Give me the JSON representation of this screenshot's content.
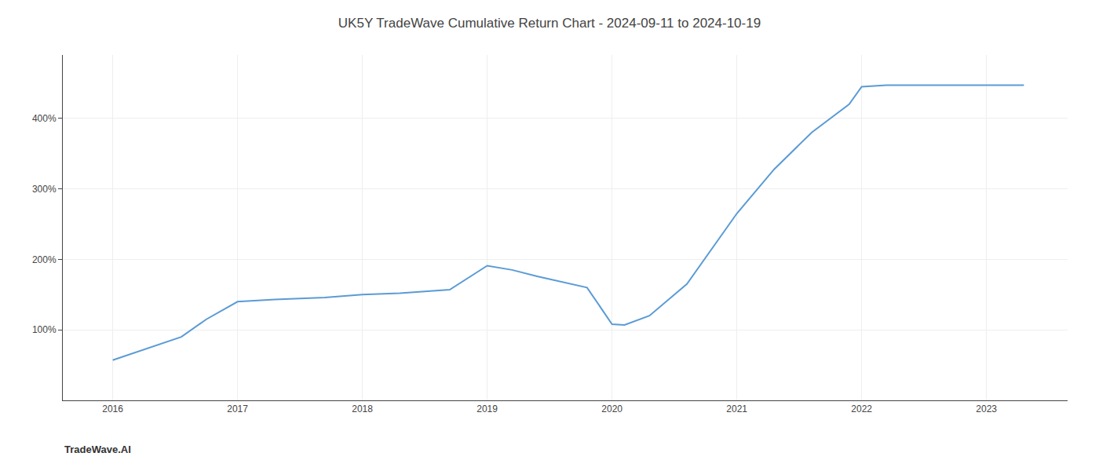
{
  "chart_data": {
    "type": "line",
    "title": "UK5Y TradeWave Cumulative Return Chart - 2024-09-11 to 2024-10-19",
    "annotations": [
      "TradeWave.AI"
    ],
    "x": [
      2016,
      2016.55,
      2016.75,
      2017,
      2017.3,
      2017.7,
      2018,
      2018.3,
      2018.7,
      2019,
      2019.2,
      2019.4,
      2019.8,
      2020,
      2020.1,
      2020.3,
      2020.6,
      2021,
      2021.3,
      2021.6,
      2021.9,
      2022,
      2022.2,
      2022.5,
      2022.8,
      2023,
      2023.3
    ],
    "values": [
      57,
      90,
      115,
      140,
      143,
      146,
      150,
      152,
      157,
      191,
      185,
      176,
      160,
      108,
      107,
      120,
      165,
      265,
      328,
      380,
      420,
      445,
      447,
      447,
      447,
      447,
      447
    ],
    "color": "#5b9bd5",
    "xlim": [
      2015.6,
      2023.65
    ],
    "xticks": [
      2016,
      2017,
      2018,
      2019,
      2020,
      2021,
      2022,
      2023
    ],
    "ylim": [
      0,
      490
    ],
    "yticks": [
      {
        "value": 100,
        "label": "100%"
      },
      {
        "value": 200,
        "label": "200%"
      },
      {
        "value": 300,
        "label": "300%"
      },
      {
        "value": 400,
        "label": "400%"
      }
    ],
    "grid": true
  }
}
